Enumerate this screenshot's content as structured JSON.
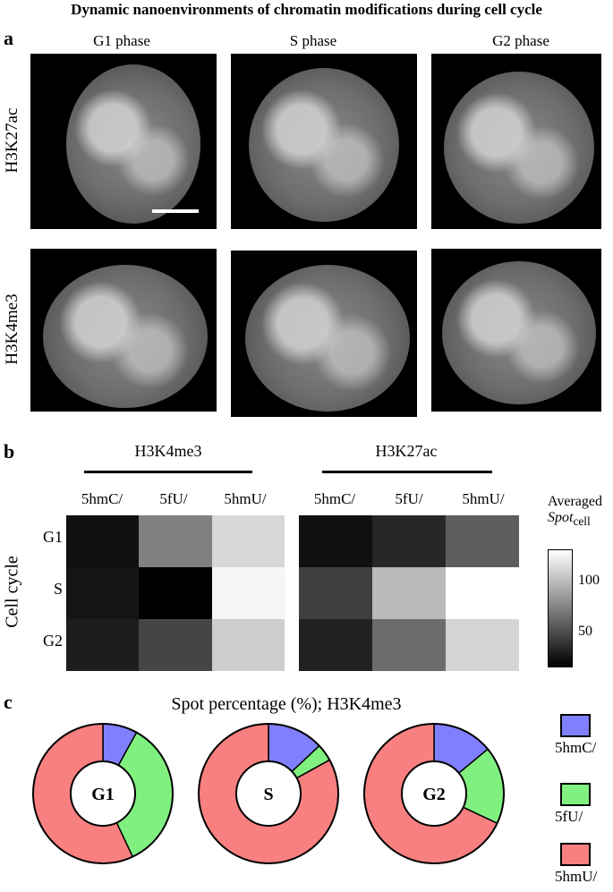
{
  "title": "Dynamic nanoenvironments of chromatin modifications during cell cycle",
  "panel_a": {
    "label": "a",
    "columns": [
      "G1 phase",
      "S phase",
      "G2 phase"
    ],
    "rows": [
      "H3K27ac",
      "H3K4me3"
    ]
  },
  "panel_b": {
    "label": "b",
    "groups": [
      "H3K4me3",
      "H3K27ac"
    ],
    "columns": [
      "5hmC/",
      "5fU/",
      "5hmU/"
    ],
    "y_title": "Cell cycle",
    "rows": [
      "G1",
      "S",
      "G2"
    ],
    "colorbar_title_line1": "Averaged",
    "colorbar_title_spot": "Spot",
    "colorbar_title_sub": "cell",
    "colorbar_ticks": [
      "100",
      "50"
    ]
  },
  "panel_c": {
    "label": "c",
    "title": "Spot percentage (%); H3K4me3",
    "legend": [
      {
        "label": "5hmC/",
        "color": "#8080ff"
      },
      {
        "label": "5fU/",
        "color": "#80f080"
      },
      {
        "label": "5hmU/",
        "color": "#f88080"
      }
    ]
  },
  "chart_data": [
    {
      "type": "heatmap",
      "title": "H3K4me3",
      "rows": [
        "G1",
        "S",
        "G2"
      ],
      "columns": [
        "5hmC/",
        "5fU/",
        "5hmU/"
      ],
      "values": [
        [
          18,
          75,
          120
        ],
        [
          20,
          10,
          135
        ],
        [
          25,
          45,
          115
        ]
      ],
      "colorbar_range": [
        10,
        140
      ]
    },
    {
      "type": "heatmap",
      "title": "H3K27ac",
      "rows": [
        "G1",
        "S",
        "G2"
      ],
      "columns": [
        "5hmC/",
        "5fU/",
        "5hmU/"
      ],
      "values": [
        [
          18,
          30,
          58
        ],
        [
          42,
          105,
          148
        ],
        [
          27,
          65,
          118
        ]
      ],
      "colorbar_range": [
        10,
        140
      ]
    },
    {
      "type": "pie",
      "title": "G1",
      "categories": [
        "5hmC/",
        "5fU/",
        "5hmU/"
      ],
      "values": [
        8,
        35,
        57
      ]
    },
    {
      "type": "pie",
      "title": "S",
      "categories": [
        "5hmC/",
        "5fU/",
        "5hmU/"
      ],
      "values": [
        13,
        4,
        83
      ]
    },
    {
      "type": "pie",
      "title": "G2",
      "categories": [
        "5hmC/",
        "5fU/",
        "5hmU/"
      ],
      "values": [
        14,
        18,
        68
      ]
    }
  ]
}
